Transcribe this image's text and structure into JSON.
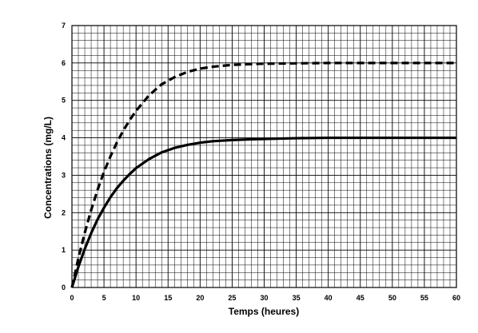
{
  "chart_data": {
    "type": "line",
    "title": "",
    "xlabel": "Temps (heures)",
    "ylabel": "Concentrations (mg/L)",
    "xlim": [
      0,
      60
    ],
    "ylim": [
      0,
      7
    ],
    "x_ticks": [
      "0",
      "5",
      "10",
      "15",
      "20",
      "25",
      "30",
      "35",
      "40",
      "45",
      "50",
      "55",
      "60"
    ],
    "y_ticks": [
      "0",
      "1",
      "2",
      "3",
      "4",
      "5",
      "6",
      "7"
    ],
    "grid": true,
    "legend": "none",
    "series": [
      {
        "style": "dashed",
        "color": "#000000",
        "x": [
          0,
          1,
          2,
          3,
          4,
          5,
          6,
          7,
          8,
          9,
          10,
          12,
          14,
          16,
          18,
          20,
          22,
          25,
          28,
          30,
          35,
          40,
          45,
          50,
          55,
          60
        ],
        "y": [
          0,
          0.78,
          1.46,
          2.07,
          2.61,
          3.09,
          3.5,
          3.87,
          4.19,
          4.47,
          4.72,
          5.13,
          5.43,
          5.62,
          5.76,
          5.85,
          5.9,
          5.95,
          5.97,
          5.98,
          5.99,
          6.0,
          6.0,
          6.0,
          6.0,
          6.0
        ]
      },
      {
        "style": "solid",
        "color": "#000000",
        "x": [
          0,
          1,
          2,
          3,
          4,
          5,
          6,
          7,
          8,
          9,
          10,
          12,
          14,
          16,
          18,
          20,
          22,
          25,
          28,
          30,
          35,
          40,
          45,
          50,
          55,
          60
        ],
        "y": [
          0,
          0.55,
          1.03,
          1.45,
          1.82,
          2.13,
          2.41,
          2.65,
          2.85,
          3.03,
          3.19,
          3.43,
          3.61,
          3.73,
          3.81,
          3.87,
          3.91,
          3.94,
          3.96,
          3.97,
          3.99,
          4.0,
          4.0,
          4.0,
          4.0,
          4.0
        ]
      }
    ]
  }
}
